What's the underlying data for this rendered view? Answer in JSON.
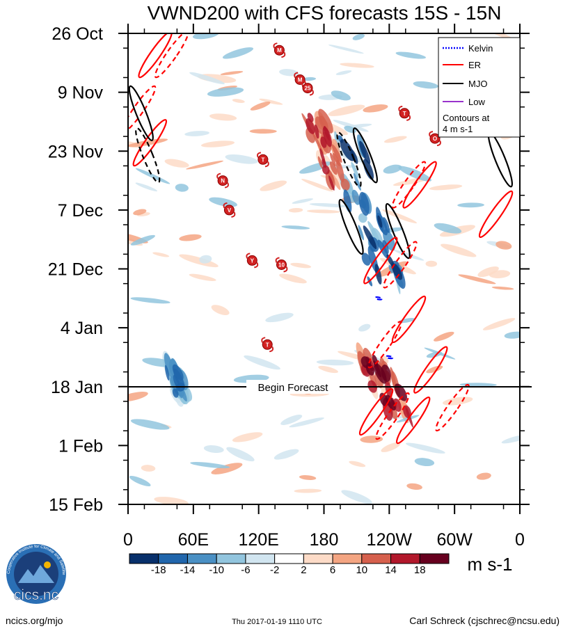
{
  "chart_data": {
    "type": "heatmap",
    "title": "VWND200 with CFS forecasts  15S - 15N",
    "variable": "VWND200",
    "xlabel": "",
    "ylabel": "",
    "x_ticks": [
      "0",
      "60E",
      "120E",
      "180",
      "120W",
      "60W",
      "0"
    ],
    "x_range": [
      0,
      360
    ],
    "y_ticks": [
      "26 Oct",
      "9 Nov",
      "23 Nov",
      "7 Dec",
      "21 Dec",
      "4 Jan",
      "18 Jan",
      "1 Feb",
      "15 Feb"
    ],
    "forecast_start": "18 Jan",
    "forecast_label": "Begin Forecast",
    "colorbar": {
      "units": "m s-1",
      "levels": [
        "-18",
        "-14",
        "-10",
        "-6",
        "-2",
        "2",
        "6",
        "10",
        "14",
        "18"
      ],
      "colors": [
        "#08306b",
        "#2166ac",
        "#4a90c4",
        "#92c5de",
        "#d1e5f0",
        "#ffffff",
        "#fddbc7",
        "#f4a582",
        "#d6604d",
        "#b2182b",
        "#67001f"
      ]
    },
    "legend": {
      "entries": [
        {
          "name": "Kelvin",
          "color": "#0000ff"
        },
        {
          "name": "ER",
          "color": "#ff0000"
        },
        {
          "name": "MJO",
          "color": "#000000"
        },
        {
          "name": "Low",
          "color": "#9933cc"
        }
      ],
      "note_line1": "Contours at",
      "note_line2": "4 m s-1"
    },
    "storms": [
      {
        "label": "M",
        "lon": 139,
        "date": "30 Oct"
      },
      {
        "label": "M",
        "lon": 158,
        "date": "6 Nov"
      },
      {
        "label": "25",
        "lon": 165,
        "date": "8 Nov"
      },
      {
        "label": "T",
        "lon": 254,
        "date": "14 Nov"
      },
      {
        "label": "O",
        "lon": 282,
        "date": "20 Nov"
      },
      {
        "label": "T",
        "lon": 124,
        "date": "25 Nov"
      },
      {
        "label": "N",
        "lon": 87,
        "date": "30 Nov"
      },
      {
        "label": "V",
        "lon": 93,
        "date": "7 Dec"
      },
      {
        "label": "Y",
        "lon": 114,
        "date": "19 Dec"
      },
      {
        "label": "10",
        "lon": 141,
        "date": "20 Dec"
      },
      {
        "label": "T",
        "lon": 128,
        "date": "8 Jan"
      }
    ],
    "contour_features": [
      {
        "wave": "ER",
        "style": "solid",
        "lon": 25,
        "date": "31 Oct"
      },
      {
        "wave": "ER",
        "style": "dashed",
        "lon": 40,
        "date": "31 Oct"
      },
      {
        "wave": "ER",
        "style": "dashed",
        "lon": 10,
        "date": "13 Nov"
      },
      {
        "wave": "ER",
        "style": "solid",
        "lon": 20,
        "date": "21 Nov"
      },
      {
        "wave": "MJO",
        "style": "solid",
        "lon": 12,
        "date": "14 Nov"
      },
      {
        "wave": "MJO",
        "style": "dashed",
        "lon": 18,
        "date": "24 Nov"
      },
      {
        "wave": "MJO",
        "style": "dashed",
        "lon": 203,
        "date": "25 Nov"
      },
      {
        "wave": "MJO",
        "style": "solid",
        "lon": 205,
        "date": "11 Dec"
      },
      {
        "wave": "MJO",
        "style": "solid",
        "lon": 248,
        "date": "12 Dec"
      },
      {
        "wave": "MJO",
        "style": "solid",
        "lon": 218,
        "date": "24 Nov"
      },
      {
        "wave": "MJO",
        "style": "solid",
        "lon": 342,
        "date": "25 Nov"
      },
      {
        "wave": "ER",
        "style": "solid",
        "lon": 268,
        "date": "1 Dec"
      },
      {
        "wave": "ER",
        "style": "dashed",
        "lon": 258,
        "date": "1 Dec"
      },
      {
        "wave": "ER",
        "style": "solid",
        "lon": 338,
        "date": "8 Dec"
      },
      {
        "wave": "ER",
        "style": "solid",
        "lon": 232,
        "date": "19 Dec"
      },
      {
        "wave": "ER",
        "style": "dashed",
        "lon": 250,
        "date": "20 Dec"
      },
      {
        "wave": "ER",
        "style": "solid",
        "lon": 258,
        "date": "2 Jan"
      },
      {
        "wave": "ER",
        "style": "dashed",
        "lon": 236,
        "date": "8 Jan"
      },
      {
        "wave": "ER",
        "style": "solid",
        "lon": 278,
        "date": "14 Jan"
      },
      {
        "wave": "ER",
        "style": "solid",
        "lon": 228,
        "date": "24 Jan"
      },
      {
        "wave": "ER",
        "style": "dashed",
        "lon": 243,
        "date": "25 Jan"
      },
      {
        "wave": "ER",
        "style": "solid",
        "lon": 262,
        "date": "26 Jan"
      },
      {
        "wave": "ER",
        "style": "dashed",
        "lon": 298,
        "date": "23 Jan"
      },
      {
        "wave": "Kelvin",
        "style": "dashed",
        "lon": 230,
        "date": "28 Dec"
      },
      {
        "wave": "Kelvin",
        "style": "dashed",
        "lon": 240,
        "date": "11 Jan"
      }
    ],
    "anomaly_regions": [
      {
        "sign": "negative",
        "lon_range": [
          190,
          250
        ],
        "dates": [
          "20 Nov",
          "25 Dec"
        ],
        "max_magnitude": 18
      },
      {
        "sign": "positive",
        "lon_range": [
          165,
          200
        ],
        "dates": [
          "15 Nov",
          "1 Dec"
        ],
        "max_magnitude": 14
      },
      {
        "sign": "positive",
        "lon_range": [
          210,
          260
        ],
        "dates": [
          "10 Jan",
          "25 Jan"
        ],
        "max_magnitude": 18
      },
      {
        "sign": "negative",
        "lon_range": [
          35,
          55
        ],
        "dates": [
          "13 Jan",
          "21 Jan"
        ],
        "max_magnitude": 14
      }
    ]
  },
  "footer": {
    "left": "ncics.org/mjo",
    "center": "Thu 2017-01-19 1110 UTC",
    "right": "Carl Schreck (cjschrec@ncsu.edu)",
    "logo_text": "cics.nc",
    "logo_ring_text": "Cooperative Institute for Climate and Satellites"
  }
}
